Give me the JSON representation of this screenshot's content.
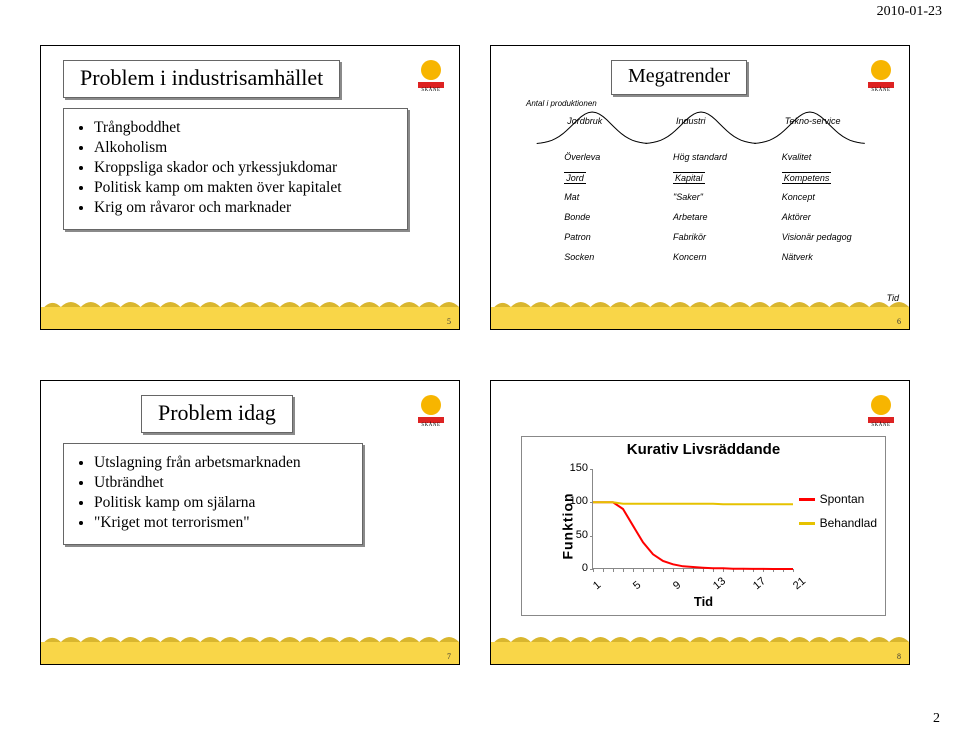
{
  "header": {
    "date": "2010-01-23",
    "page_num": "2"
  },
  "slide1": {
    "title": "Problem i industrisamhället",
    "bullets": [
      "Trångboddhet",
      "Alkoholism",
      "Kroppsliga skador och yrkessjukdomar",
      "Politisk kamp om makten över kapitalet",
      "Krig om råvaror och marknader"
    ],
    "footer_num": "5"
  },
  "slide2": {
    "title": "Megatrender",
    "axis_top": "Antal i produktionen",
    "curves": [
      {
        "peak_x": 0.18,
        "label": "Jordbruk"
      },
      {
        "peak_x": 0.5,
        "label": "Industri"
      },
      {
        "peak_x": 0.82,
        "label": "Tekno-service"
      }
    ],
    "rows": [
      [
        "Överleva",
        "Hög standard",
        "Kvalitet"
      ],
      [
        "Mat",
        "\"Saker\"",
        "Koncept"
      ],
      [
        "Bonde",
        "Arbetare",
        "Aktörer"
      ],
      [
        "Patron",
        "Fabrikör",
        "Visionär pedagog"
      ],
      [
        "Socken",
        "Koncern",
        "Nätverk"
      ]
    ],
    "kapital_row": [
      "Jord",
      "Kapital",
      "Kompetens"
    ],
    "tid": "Tid",
    "footer_num": "6",
    "curve_color": "#000000"
  },
  "slide3": {
    "title": "Problem idag",
    "bullets": [
      "Utslagning från arbetsmarknaden",
      "Utbrändhet",
      "Politisk kamp om själarna",
      "\"Kriget mot terrorismen\""
    ],
    "footer_num": "7"
  },
  "slide4": {
    "title": "Kurativ Livsräddande",
    "y_label": "Funktion",
    "x_label": "Tid",
    "y_ticks": [
      "0",
      "50",
      "100",
      "150"
    ],
    "x_ticks": [
      "1",
      "5",
      "9",
      "13",
      "17",
      "21"
    ],
    "x_tick_count_minor": 21,
    "series": [
      {
        "name": "Spontan",
        "color": "#ff0000",
        "points": [
          [
            1,
            100
          ],
          [
            2,
            100
          ],
          [
            3,
            100
          ],
          [
            4,
            90
          ],
          [
            5,
            65
          ],
          [
            6,
            40
          ],
          [
            7,
            22
          ],
          [
            8,
            12
          ],
          [
            9,
            7
          ],
          [
            10,
            4
          ],
          [
            11,
            3
          ],
          [
            12,
            2
          ],
          [
            13,
            1
          ],
          [
            14,
            1
          ],
          [
            15,
            0.5
          ],
          [
            16,
            0.3
          ],
          [
            17,
            0.2
          ],
          [
            18,
            0.1
          ],
          [
            19,
            0.05
          ],
          [
            20,
            0.02
          ],
          [
            21,
            0
          ]
        ]
      },
      {
        "name": "Behandlad",
        "color": "#e6c200",
        "points": [
          [
            1,
            100
          ],
          [
            2,
            100
          ],
          [
            3,
            100
          ],
          [
            4,
            98
          ],
          [
            5,
            98
          ],
          [
            6,
            98
          ],
          [
            7,
            98
          ],
          [
            8,
            98
          ],
          [
            9,
            98
          ],
          [
            10,
            98
          ],
          [
            11,
            98
          ],
          [
            12,
            98
          ],
          [
            13,
            98
          ],
          [
            14,
            97
          ],
          [
            15,
            97
          ],
          [
            16,
            97
          ],
          [
            17,
            97
          ],
          [
            18,
            97
          ],
          [
            19,
            97
          ],
          [
            20,
            97
          ],
          [
            21,
            97
          ]
        ]
      }
    ],
    "ylim": [
      0,
      150
    ],
    "xlim": [
      1,
      21
    ],
    "footer_num": "8"
  },
  "colors": {
    "yellow_band": "#f9d648",
    "dark_yellow": "#d9b62e"
  }
}
